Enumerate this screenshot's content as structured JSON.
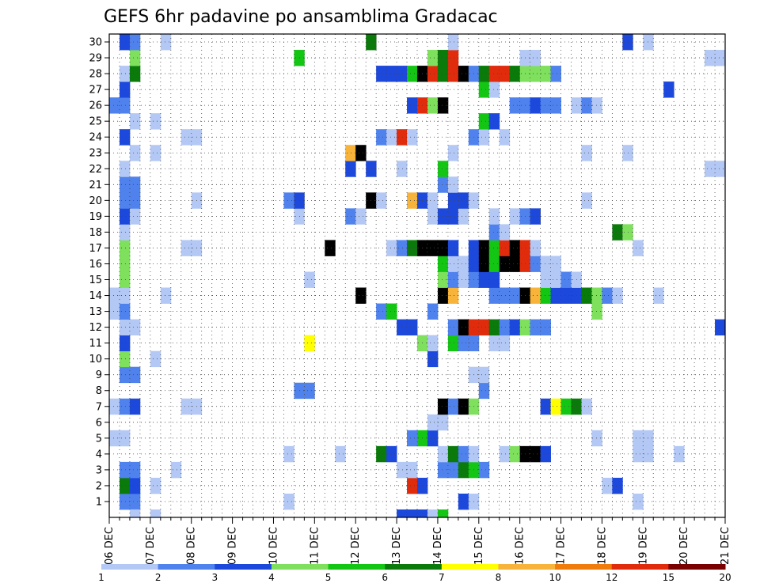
{
  "chart_data": {
    "type": "heatmap",
    "title": "GEFS 6hr padavine po ansamblima Gradacac",
    "xlabel": "",
    "ylabel": "",
    "x_ticks": [
      "06 DEC",
      "07 DEC",
      "08 DEC",
      "09 DEC",
      "10 DEC",
      "11 DEC",
      "12 DEC",
      "13 DEC",
      "14 DEC",
      "15 DEC",
      "16 DEC",
      "17 DEC",
      "18 DEC",
      "19 DEC",
      "20 DEC",
      "21 DEC"
    ],
    "y_ticks": [
      "1",
      "2",
      "3",
      "4",
      "5",
      "6",
      "7",
      "8",
      "9",
      "10",
      "11",
      "12",
      "13",
      "14",
      "15",
      "16",
      "17",
      "18",
      "19",
      "20",
      "21",
      "22",
      "23",
      "24",
      "25",
      "26",
      "27",
      "28",
      "29",
      "30"
    ],
    "xlim": [
      0,
      60
    ],
    "ylim": [
      0,
      30
    ],
    "x_unit": "6-hour step from 06 DEC 00Z (4 steps per day)",
    "y_unit": "ensemble member",
    "grid": true,
    "colorbar": {
      "labels": [
        "1",
        "2",
        "3",
        "4",
        "5",
        "6",
        "7",
        "8",
        "10",
        "12",
        "15",
        "20"
      ],
      "colors": [
        "#b4c8f5",
        "#5082ee",
        "#1d48dc",
        "#7ee05c",
        "#14c614",
        "#0a7a0a",
        "#ffff00",
        "#f8b33a",
        "#f07c0c",
        "#e02c0c",
        "#7a0000"
      ]
    },
    "cells": [
      [
        1,
        1,
        2
      ],
      [
        2,
        1,
        2
      ],
      [
        17,
        1,
        1
      ],
      [
        34,
        1,
        3
      ],
      [
        35,
        1,
        1
      ],
      [
        51,
        1,
        1
      ],
      [
        1,
        2,
        6
      ],
      [
        2,
        2,
        3
      ],
      [
        4,
        2,
        1
      ],
      [
        29,
        2,
        10
      ],
      [
        30,
        2,
        3
      ],
      [
        48,
        2,
        1
      ],
      [
        49,
        2,
        3
      ],
      [
        1,
        3,
        2
      ],
      [
        2,
        3,
        2
      ],
      [
        6,
        3,
        1
      ],
      [
        28,
        3,
        1
      ],
      [
        29,
        3,
        1
      ],
      [
        32,
        3,
        2
      ],
      [
        33,
        3,
        2
      ],
      [
        34,
        3,
        6
      ],
      [
        35,
        3,
        5
      ],
      [
        36,
        3,
        2
      ],
      [
        17,
        4,
        1
      ],
      [
        22,
        4,
        1
      ],
      [
        26,
        4,
        6
      ],
      [
        27,
        4,
        3
      ],
      [
        32,
        4,
        1
      ],
      [
        33,
        4,
        6
      ],
      [
        34,
        4,
        2
      ],
      [
        35,
        4,
        1
      ],
      [
        38,
        4,
        1
      ],
      [
        39,
        4,
        4
      ],
      [
        40,
        4,
        15
      ],
      [
        41,
        4,
        12
      ],
      [
        42,
        4,
        3
      ],
      [
        51,
        4,
        1
      ],
      [
        52,
        4,
        1
      ],
      [
        55,
        4,
        1
      ],
      [
        0,
        5,
        1
      ],
      [
        1,
        5,
        1
      ],
      [
        29,
        5,
        2
      ],
      [
        30,
        5,
        5
      ],
      [
        31,
        5,
        3
      ],
      [
        47,
        5,
        1
      ],
      [
        51,
        5,
        1
      ],
      [
        52,
        5,
        1
      ],
      [
        31,
        6,
        1
      ],
      [
        32,
        6,
        1
      ],
      [
        0,
        7,
        1
      ],
      [
        1,
        7,
        2
      ],
      [
        2,
        7,
        3
      ],
      [
        7,
        7,
        1
      ],
      [
        8,
        7,
        1
      ],
      [
        32,
        7,
        15
      ],
      [
        33,
        7,
        2
      ],
      [
        34,
        7,
        12
      ],
      [
        35,
        7,
        4
      ],
      [
        42,
        7,
        3
      ],
      [
        43,
        7,
        7
      ],
      [
        44,
        7,
        5
      ],
      [
        45,
        7,
        6
      ],
      [
        46,
        7,
        1
      ],
      [
        18,
        8,
        2
      ],
      [
        19,
        8,
        2
      ],
      [
        36,
        8,
        2
      ],
      [
        1,
        9,
        2
      ],
      [
        2,
        9,
        2
      ],
      [
        35,
        9,
        1
      ],
      [
        36,
        9,
        1
      ],
      [
        1,
        10,
        4
      ],
      [
        4,
        10,
        1
      ],
      [
        31,
        10,
        3
      ],
      [
        1,
        11,
        3
      ],
      [
        19,
        11,
        7
      ],
      [
        30,
        11,
        4
      ],
      [
        31,
        11,
        1
      ],
      [
        33,
        11,
        5
      ],
      [
        34,
        11,
        2
      ],
      [
        35,
        11,
        2
      ],
      [
        37,
        11,
        1
      ],
      [
        38,
        11,
        1
      ],
      [
        1,
        12,
        1
      ],
      [
        2,
        12,
        1
      ],
      [
        28,
        12,
        3
      ],
      [
        29,
        12,
        3
      ],
      [
        33,
        12,
        2
      ],
      [
        34,
        12,
        20
      ],
      [
        35,
        12,
        10
      ],
      [
        36,
        12,
        10
      ],
      [
        37,
        12,
        6
      ],
      [
        38,
        12,
        2
      ],
      [
        39,
        12,
        3
      ],
      [
        40,
        12,
        4
      ],
      [
        41,
        12,
        2
      ],
      [
        42,
        12,
        2
      ],
      [
        59,
        12,
        3
      ],
      [
        0,
        13,
        1
      ],
      [
        1,
        13,
        2
      ],
      [
        26,
        13,
        2
      ],
      [
        27,
        13,
        5
      ],
      [
        31,
        13,
        2
      ],
      [
        47,
        13,
        4
      ],
      [
        0,
        14,
        1
      ],
      [
        1,
        14,
        1
      ],
      [
        5,
        14,
        1
      ],
      [
        24,
        14,
        20
      ],
      [
        32,
        14,
        15
      ],
      [
        33,
        14,
        8
      ],
      [
        37,
        14,
        2
      ],
      [
        38,
        14,
        2
      ],
      [
        39,
        14,
        2
      ],
      [
        40,
        14,
        12
      ],
      [
        41,
        14,
        8
      ],
      [
        42,
        14,
        5
      ],
      [
        43,
        14,
        3
      ],
      [
        44,
        14,
        3
      ],
      [
        45,
        14,
        3
      ],
      [
        46,
        14,
        6
      ],
      [
        47,
        14,
        4
      ],
      [
        48,
        14,
        2
      ],
      [
        49,
        14,
        1
      ],
      [
        53,
        14,
        1
      ],
      [
        1,
        15,
        4
      ],
      [
        19,
        15,
        1
      ],
      [
        32,
        15,
        4
      ],
      [
        33,
        15,
        2
      ],
      [
        34,
        15,
        1
      ],
      [
        35,
        15,
        2
      ],
      [
        36,
        15,
        3
      ],
      [
        37,
        15,
        3
      ],
      [
        42,
        15,
        1
      ],
      [
        43,
        15,
        1
      ],
      [
        44,
        15,
        2
      ],
      [
        45,
        15,
        1
      ],
      [
        1,
        16,
        4
      ],
      [
        32,
        16,
        5
      ],
      [
        33,
        16,
        1
      ],
      [
        34,
        16,
        1
      ],
      [
        35,
        16,
        3
      ],
      [
        36,
        16,
        12
      ],
      [
        37,
        16,
        5
      ],
      [
        38,
        16,
        12
      ],
      [
        39,
        16,
        12
      ],
      [
        40,
        16,
        10
      ],
      [
        41,
        16,
        2
      ],
      [
        42,
        16,
        1
      ],
      [
        43,
        16,
        1
      ],
      [
        1,
        17,
        4
      ],
      [
        7,
        17,
        1
      ],
      [
        8,
        17,
        1
      ],
      [
        21,
        17,
        12
      ],
      [
        27,
        17,
        1
      ],
      [
        28,
        17,
        2
      ],
      [
        29,
        17,
        6
      ],
      [
        30,
        17,
        12
      ],
      [
        31,
        17,
        12
      ],
      [
        32,
        17,
        12
      ],
      [
        33,
        17,
        3
      ],
      [
        35,
        17,
        3
      ],
      [
        36,
        17,
        12
      ],
      [
        37,
        17,
        5
      ],
      [
        38,
        17,
        10
      ],
      [
        39,
        17,
        12
      ],
      [
        40,
        17,
        10
      ],
      [
        41,
        17,
        1
      ],
      [
        51,
        17,
        1
      ],
      [
        1,
        18,
        1
      ],
      [
        37,
        18,
        2
      ],
      [
        38,
        18,
        1
      ],
      [
        49,
        18,
        6
      ],
      [
        50,
        18,
        4
      ],
      [
        1,
        19,
        3
      ],
      [
        2,
        19,
        1
      ],
      [
        18,
        19,
        1
      ],
      [
        23,
        19,
        2
      ],
      [
        24,
        19,
        1
      ],
      [
        31,
        19,
        1
      ],
      [
        32,
        19,
        3
      ],
      [
        33,
        19,
        3
      ],
      [
        34,
        19,
        1
      ],
      [
        37,
        19,
        1
      ],
      [
        39,
        19,
        1
      ],
      [
        40,
        19,
        2
      ],
      [
        41,
        19,
        3
      ],
      [
        1,
        20,
        2
      ],
      [
        2,
        20,
        2
      ],
      [
        8,
        20,
        1
      ],
      [
        17,
        20,
        2
      ],
      [
        18,
        20,
        3
      ],
      [
        25,
        20,
        15
      ],
      [
        26,
        20,
        1
      ],
      [
        29,
        20,
        8
      ],
      [
        30,
        20,
        3
      ],
      [
        31,
        20,
        1
      ],
      [
        33,
        20,
        3
      ],
      [
        34,
        20,
        3
      ],
      [
        35,
        20,
        1
      ],
      [
        46,
        20,
        1
      ],
      [
        1,
        21,
        2
      ],
      [
        2,
        21,
        2
      ],
      [
        32,
        21,
        2
      ],
      [
        33,
        21,
        1
      ],
      [
        1,
        22,
        1
      ],
      [
        23,
        22,
        3
      ],
      [
        25,
        22,
        3
      ],
      [
        28,
        22,
        1
      ],
      [
        32,
        22,
        5
      ],
      [
        58,
        22,
        1
      ],
      [
        59,
        22,
        1
      ],
      [
        2,
        23,
        1
      ],
      [
        4,
        23,
        1
      ],
      [
        23,
        23,
        8
      ],
      [
        24,
        23,
        12
      ],
      [
        33,
        23,
        1
      ],
      [
        46,
        23,
        1
      ],
      [
        50,
        23,
        1
      ],
      [
        1,
        24,
        3
      ],
      [
        7,
        24,
        1
      ],
      [
        8,
        24,
        1
      ],
      [
        26,
        24,
        2
      ],
      [
        27,
        24,
        1
      ],
      [
        28,
        24,
        10
      ],
      [
        29,
        24,
        1
      ],
      [
        35,
        24,
        2
      ],
      [
        36,
        24,
        1
      ],
      [
        38,
        24,
        1
      ],
      [
        2,
        25,
        1
      ],
      [
        4,
        25,
        1
      ],
      [
        36,
        25,
        5
      ],
      [
        37,
        25,
        3
      ],
      [
        0,
        26,
        2
      ],
      [
        1,
        26,
        2
      ],
      [
        29,
        26,
        3
      ],
      [
        30,
        26,
        10
      ],
      [
        31,
        26,
        4
      ],
      [
        32,
        26,
        12
      ],
      [
        39,
        26,
        2
      ],
      [
        40,
        26,
        2
      ],
      [
        41,
        26,
        3
      ],
      [
        42,
        26,
        2
      ],
      [
        43,
        26,
        2
      ],
      [
        45,
        26,
        1
      ],
      [
        46,
        26,
        2
      ],
      [
        47,
        26,
        1
      ],
      [
        1,
        27,
        3
      ],
      [
        36,
        27,
        5
      ],
      [
        37,
        27,
        1
      ],
      [
        54,
        27,
        3
      ],
      [
        1,
        28,
        1
      ],
      [
        2,
        28,
        6
      ],
      [
        26,
        28,
        3
      ],
      [
        27,
        28,
        3
      ],
      [
        28,
        28,
        3
      ],
      [
        29,
        28,
        5
      ],
      [
        30,
        28,
        15
      ],
      [
        31,
        28,
        10
      ],
      [
        32,
        28,
        6
      ],
      [
        33,
        28,
        10
      ],
      [
        34,
        28,
        12
      ],
      [
        35,
        28,
        2
      ],
      [
        36,
        28,
        6
      ],
      [
        37,
        28,
        10
      ],
      [
        38,
        28,
        10
      ],
      [
        39,
        28,
        6
      ],
      [
        40,
        28,
        4
      ],
      [
        41,
        28,
        4
      ],
      [
        42,
        28,
        4
      ],
      [
        43,
        28,
        2
      ],
      [
        2,
        29,
        4
      ],
      [
        18,
        29,
        5
      ],
      [
        31,
        29,
        4
      ],
      [
        32,
        29,
        6
      ],
      [
        33,
        29,
        10
      ],
      [
        40,
        29,
        1
      ],
      [
        41,
        29,
        1
      ],
      [
        58,
        29,
        1
      ],
      [
        59,
        29,
        1
      ],
      [
        1,
        30,
        3
      ],
      [
        2,
        30,
        2
      ],
      [
        5,
        30,
        1
      ],
      [
        25,
        30,
        6
      ],
      [
        33,
        30,
        1
      ],
      [
        50,
        30,
        3
      ],
      [
        52,
        30,
        1
      ],
      [
        2,
        0,
        1
      ],
      [
        4,
        0,
        1
      ],
      [
        28,
        0,
        3
      ],
      [
        29,
        0,
        3
      ],
      [
        30,
        0,
        3
      ],
      [
        31,
        0,
        1
      ],
      [
        32,
        0,
        5
      ]
    ]
  }
}
